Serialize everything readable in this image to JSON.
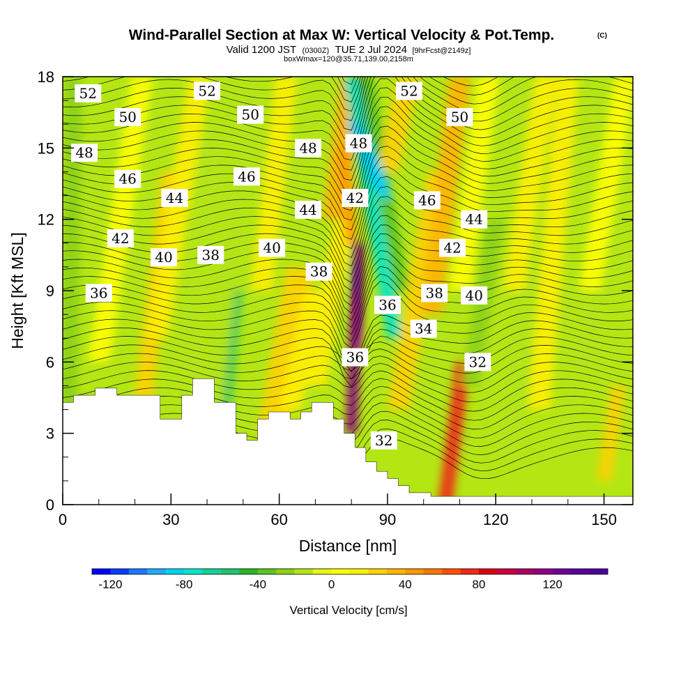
{
  "header": {
    "title": "Wind-Parallel Section at Max W: Vertical Velocity & Pot.Temp.",
    "copyright": "(C)",
    "valid_prefix": "Valid 1200 JST",
    "valid_utc": "(0300Z)",
    "valid_date": "TUE 2 Jul 2024",
    "forecast_tag": "[9hrFcst@2149z]",
    "box_info": "boxWmax=120@35.71,139.00,2158m"
  },
  "chart_data": {
    "type": "heatmap",
    "xlabel": "Distance [nm]",
    "ylabel": "Height [Kft MSL]",
    "xlim": [
      0,
      158
    ],
    "ylim": [
      0,
      18
    ],
    "x_ticks": [
      0,
      30,
      60,
      90,
      120,
      150
    ],
    "x_tick_labels": [
      "0",
      "30",
      "60",
      "90",
      "120",
      "150"
    ],
    "y_ticks": [
      0,
      3,
      6,
      9,
      12,
      15,
      18
    ],
    "y_tick_labels": [
      "0",
      "3",
      "6",
      "9",
      "12",
      "15",
      "18"
    ],
    "colorbar": {
      "title": "Vertical Velocity [cm/s]",
      "min": -130,
      "max": 150,
      "step": 10,
      "tick_values": [
        -120,
        -80,
        -40,
        0,
        40,
        80,
        120
      ],
      "tick_labels": [
        "-120",
        "-80",
        "-40",
        "0",
        "40",
        "80",
        "120"
      ],
      "colors": [
        "#0000ff",
        "#0a3cff",
        "#1e78ff",
        "#1eaaff",
        "#00d2f0",
        "#00e6c8",
        "#14d296",
        "#1ec36e",
        "#28b428",
        "#5ac31e",
        "#8cd214",
        "#b4e614",
        "#e6f514",
        "#ffff00",
        "#fff000",
        "#ffd200",
        "#ffb400",
        "#ff9600",
        "#ff7800",
        "#ff5000",
        "#f02814",
        "#dc0014",
        "#c8003c",
        "#aa0064",
        "#8c0082",
        "#6e0096",
        "#5a00a0",
        "#4b009b"
      ]
    },
    "potential_temperature_contour_labels": [
      {
        "value": "52",
        "x": 7,
        "y": 17.3
      },
      {
        "value": "52",
        "x": 40,
        "y": 17.4
      },
      {
        "value": "52",
        "x": 96,
        "y": 17.4
      },
      {
        "value": "50",
        "x": 18,
        "y": 16.3
      },
      {
        "value": "50",
        "x": 52,
        "y": 16.4
      },
      {
        "value": "50",
        "x": 110,
        "y": 16.3
      },
      {
        "value": "48",
        "x": 6,
        "y": 14.8
      },
      {
        "value": "48",
        "x": 68,
        "y": 15.0
      },
      {
        "value": "48",
        "x": 82,
        "y": 15.2
      },
      {
        "value": "46",
        "x": 18,
        "y": 13.7
      },
      {
        "value": "46",
        "x": 51,
        "y": 13.8
      },
      {
        "value": "46",
        "x": 101,
        "y": 12.8
      },
      {
        "value": "44",
        "x": 31,
        "y": 12.9
      },
      {
        "value": "44",
        "x": 68,
        "y": 12.4
      },
      {
        "value": "44",
        "x": 114,
        "y": 12.0
      },
      {
        "value": "42",
        "x": 16,
        "y": 11.2
      },
      {
        "value": "42",
        "x": 81,
        "y": 12.9
      },
      {
        "value": "42",
        "x": 108,
        "y": 10.8
      },
      {
        "value": "40",
        "x": 28,
        "y": 10.4
      },
      {
        "value": "40",
        "x": 58,
        "y": 10.8
      },
      {
        "value": "40",
        "x": 114,
        "y": 8.8
      },
      {
        "value": "38",
        "x": 41,
        "y": 10.5
      },
      {
        "value": "38",
        "x": 71,
        "y": 9.8
      },
      {
        "value": "38",
        "x": 103,
        "y": 8.9
      },
      {
        "value": "36",
        "x": 10,
        "y": 8.9
      },
      {
        "value": "36",
        "x": 90,
        "y": 8.4
      },
      {
        "value": "36",
        "x": 81,
        "y": 6.2
      },
      {
        "value": "34",
        "x": 100,
        "y": 7.4
      },
      {
        "value": "32",
        "x": 115,
        "y": 6.0
      },
      {
        "value": "32",
        "x": 89,
        "y": 2.7
      }
    ],
    "terrain_profile": [
      [
        0,
        4.3
      ],
      [
        3,
        4.3
      ],
      [
        3,
        4.6
      ],
      [
        9,
        4.6
      ],
      [
        9,
        4.9
      ],
      [
        15,
        4.9
      ],
      [
        15,
        4.6
      ],
      [
        27,
        4.6
      ],
      [
        27,
        3.6
      ],
      [
        33,
        3.6
      ],
      [
        33,
        4.6
      ],
      [
        36,
        4.6
      ],
      [
        36,
        5.3
      ],
      [
        42,
        5.3
      ],
      [
        42,
        4.3
      ],
      [
        48,
        4.3
      ],
      [
        48,
        3.0
      ],
      [
        51,
        3.0
      ],
      [
        51,
        2.7
      ],
      [
        54,
        2.7
      ],
      [
        54,
        3.6
      ],
      [
        57,
        3.6
      ],
      [
        57,
        3.9
      ],
      [
        63,
        3.9
      ],
      [
        63,
        3.6
      ],
      [
        66,
        3.6
      ],
      [
        66,
        3.9
      ],
      [
        69,
        3.9
      ],
      [
        69,
        4.3
      ],
      [
        75,
        4.3
      ],
      [
        75,
        3.6
      ],
      [
        78,
        3.6
      ],
      [
        78,
        3.0
      ],
      [
        81,
        3.0
      ],
      [
        81,
        2.4
      ],
      [
        84,
        2.4
      ],
      [
        84,
        1.8
      ],
      [
        87,
        1.8
      ],
      [
        87,
        1.4
      ],
      [
        90,
        1.4
      ],
      [
        90,
        1.1
      ],
      [
        93,
        1.1
      ],
      [
        93,
        0.8
      ],
      [
        96,
        0.8
      ],
      [
        96,
        0.5
      ],
      [
        102,
        0.5
      ],
      [
        102,
        0.35
      ],
      [
        158,
        0.35
      ]
    ]
  }
}
